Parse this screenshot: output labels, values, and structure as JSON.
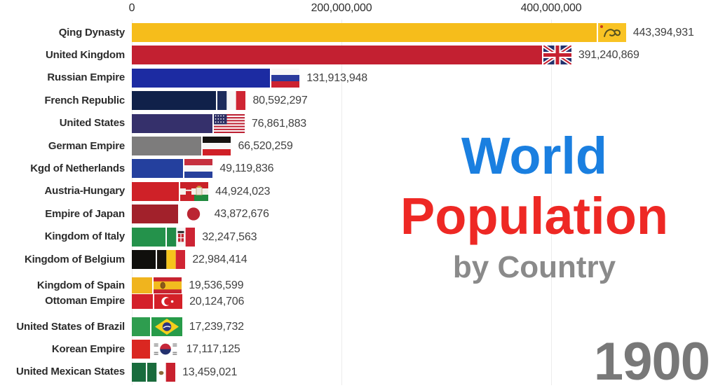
{
  "title": {
    "line1": "World",
    "line2": "Population",
    "line3": "by Country"
  },
  "year": "1900",
  "colors": {
    "title_line1": "#1a7fe0",
    "title_line2": "#ee2824",
    "title_line3": "#8a8a8a",
    "year": "#787878",
    "axis_text": "#2e2e2e",
    "gridline": "#ececec"
  },
  "chart_data": {
    "type": "bar",
    "orientation": "horizontal",
    "title": "World Population by Country",
    "frame_year": "1900",
    "xlabel": "Population",
    "grid": true,
    "x_axis": {
      "ticks": [
        0,
        200000000,
        400000000
      ],
      "tick_labels": [
        "0",
        "200,000,000",
        "400,000,000"
      ],
      "range": [
        0,
        400000000
      ]
    },
    "rows": [
      {
        "label": "Qing Dynasty",
        "value": 443394931,
        "value_label": "443,394,931",
        "color": "#f6bd1b",
        "flag": "qing"
      },
      {
        "label": "United Kingdom",
        "value": 391240869,
        "value_label": "391,240,869",
        "color": "#c32031",
        "flag": "uk"
      },
      {
        "label": "Russian Empire",
        "value": 131913948,
        "value_label": "131,913,948",
        "color": "#1c2ba2",
        "flag": "russia"
      },
      {
        "label": "French Republic",
        "value": 80592297,
        "value_label": "80,592,297",
        "color": "#10214a",
        "flag": "france"
      },
      {
        "label": "United States",
        "value": 76861883,
        "value_label": "76,861,883",
        "color": "#35306b",
        "flag": "usa"
      },
      {
        "label": "German Empire",
        "value": 66520259,
        "value_label": "66,520,259",
        "color": "#7d7c7c",
        "flag": "german_empire"
      },
      {
        "label": "Kgd of Netherlands",
        "value": 49119836,
        "value_label": "49,119,836",
        "color": "#24409e",
        "flag": "netherlands"
      },
      {
        "label": "Austria-Hungary",
        "value": 44924023,
        "value_label": "44,924,023",
        "color": "#cf2128",
        "flag": "austria_hungary"
      },
      {
        "label": "Empire of Japan",
        "value": 43872676,
        "value_label": "43,872,676",
        "color": "#a2212b",
        "flag": "japan"
      },
      {
        "label": "Kingdom of Italy",
        "value": 32247563,
        "value_label": "32,247,563",
        "color": "#24924b",
        "flag": "italy_kingdom"
      },
      {
        "label": "Kingdom of Belgium",
        "value": 22984414,
        "value_label": "22,984,414",
        "color": "#100f0c",
        "flag": "belgium"
      },
      {
        "label": "Kingdom of Spain",
        "value": 19536599,
        "value_label": "19,536,599",
        "color": "#f0b41e",
        "flag": "spain",
        "transition": "top"
      },
      {
        "label": "Ottoman Empire",
        "value": 20124706,
        "value_label": "20,124,706",
        "color": "#d4202a",
        "flag": "ottoman",
        "transition": "bottom"
      },
      {
        "label": "United States of Brazil",
        "value": 17239732,
        "value_label": "17,239,732",
        "color": "#2e9d4f",
        "flag": "brazil"
      },
      {
        "label": "Korean Empire",
        "value": 17117125,
        "value_label": "17,117,125",
        "color": "#da2721",
        "flag": "korea"
      },
      {
        "label": "United Mexican States",
        "value": 13459021,
        "value_label": "13,459,021",
        "color": "#186c3d",
        "flag": "mexico"
      }
    ]
  }
}
